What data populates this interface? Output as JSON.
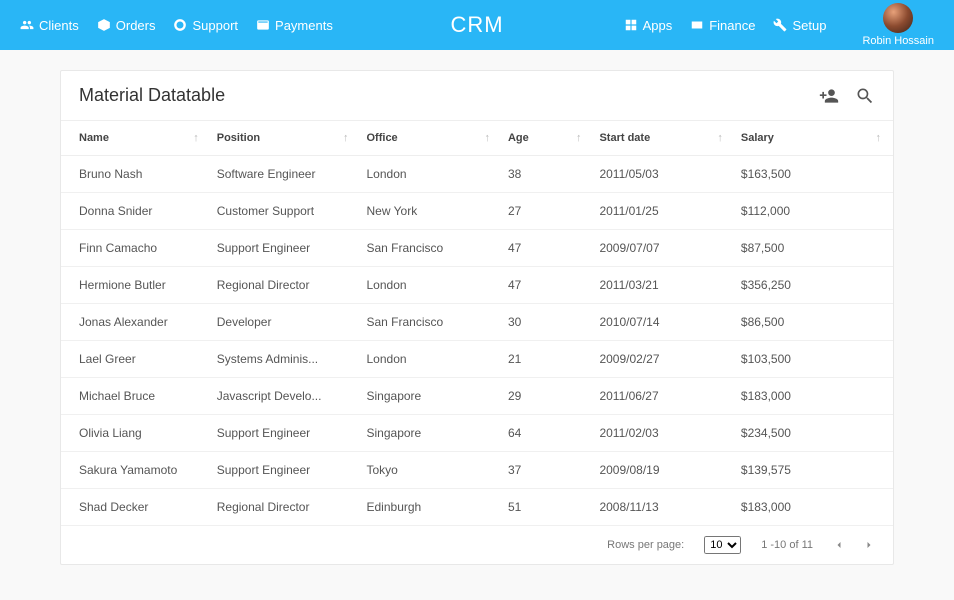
{
  "brand": "CRM",
  "user": {
    "name": "Robin Hossain"
  },
  "nav_left": [
    {
      "label": "Clients",
      "icon": "clients-icon"
    },
    {
      "label": "Orders",
      "icon": "orders-icon"
    },
    {
      "label": "Support",
      "icon": "support-icon"
    },
    {
      "label": "Payments",
      "icon": "payments-icon"
    }
  ],
  "nav_right": [
    {
      "label": "Apps",
      "icon": "apps-icon"
    },
    {
      "label": "Finance",
      "icon": "finance-icon"
    },
    {
      "label": "Setup",
      "icon": "setup-icon"
    }
  ],
  "card": {
    "title": "Material Datatable"
  },
  "columns": [
    {
      "label": "Name",
      "width": "18%"
    },
    {
      "label": "Position",
      "width": "18%"
    },
    {
      "label": "Office",
      "width": "17%"
    },
    {
      "label": "Age",
      "width": "11%"
    },
    {
      "label": "Start date",
      "width": "17%"
    },
    {
      "label": "Salary",
      "width": "19%"
    }
  ],
  "rows": [
    [
      "Bruno Nash",
      "Software Engineer",
      "London",
      "38",
      "2011/05/03",
      "$163,500"
    ],
    [
      "Donna Snider",
      "Customer Support",
      "New York",
      "27",
      "2011/01/25",
      "$112,000"
    ],
    [
      "Finn Camacho",
      "Support Engineer",
      "San Francisco",
      "47",
      "2009/07/07",
      "$87,500"
    ],
    [
      "Hermione Butler",
      "Regional Director",
      "London",
      "47",
      "2011/03/21",
      "$356,250"
    ],
    [
      "Jonas Alexander",
      "Developer",
      "San Francisco",
      "30",
      "2010/07/14",
      "$86,500"
    ],
    [
      "Lael Greer",
      "Systems Adminis...",
      "London",
      "21",
      "2009/02/27",
      "$103,500"
    ],
    [
      "Michael Bruce",
      "Javascript Develo...",
      "Singapore",
      "29",
      "2011/06/27",
      "$183,000"
    ],
    [
      "Olivia Liang",
      "Support Engineer",
      "Singapore",
      "64",
      "2011/02/03",
      "$234,500"
    ],
    [
      "Sakura Yamamoto",
      "Support Engineer",
      "Tokyo",
      "37",
      "2009/08/19",
      "$139,575"
    ],
    [
      "Shad Decker",
      "Regional Director",
      "Edinburgh",
      "51",
      "2008/11/13",
      "$183,000"
    ]
  ],
  "pager": {
    "rows_per_page_label": "Rows per page:",
    "rows_per_page_value": "10",
    "range": "1 -10 of 11"
  },
  "colors": {
    "topbar": "#29b6f6",
    "card_border": "#e8e8e8",
    "row_border": "#f0f0f0",
    "text": "#333",
    "muted": "#777"
  }
}
